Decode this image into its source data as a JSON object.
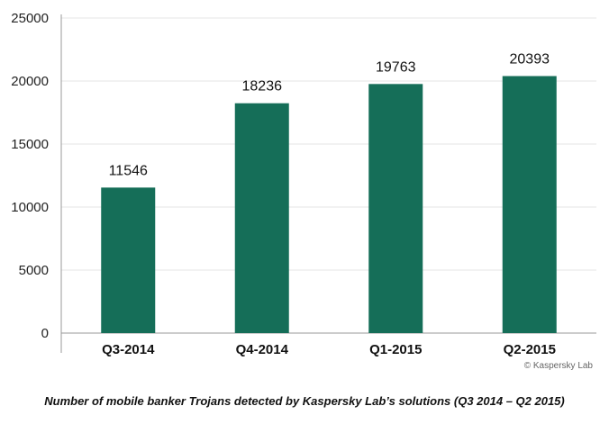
{
  "chart_data": {
    "type": "bar",
    "categories": [
      "Q3-2014",
      "Q4-2014",
      "Q1-2015",
      "Q2-2015"
    ],
    "values": [
      11546,
      18236,
      19763,
      20393
    ],
    "title": "",
    "xlabel": "",
    "ylabel": "",
    "ylim": [
      0,
      25000
    ],
    "yticks": [
      0,
      5000,
      10000,
      15000,
      20000,
      25000
    ],
    "grid": true,
    "bar_color": "#156e58",
    "gridline_color": "#e6e6e6"
  },
  "credit": "© Kaspersky Lab",
  "caption": "Number of mobile banker Trojans detected by Kaspersky Lab’s solutions (Q3 2014 – Q2 2015)"
}
